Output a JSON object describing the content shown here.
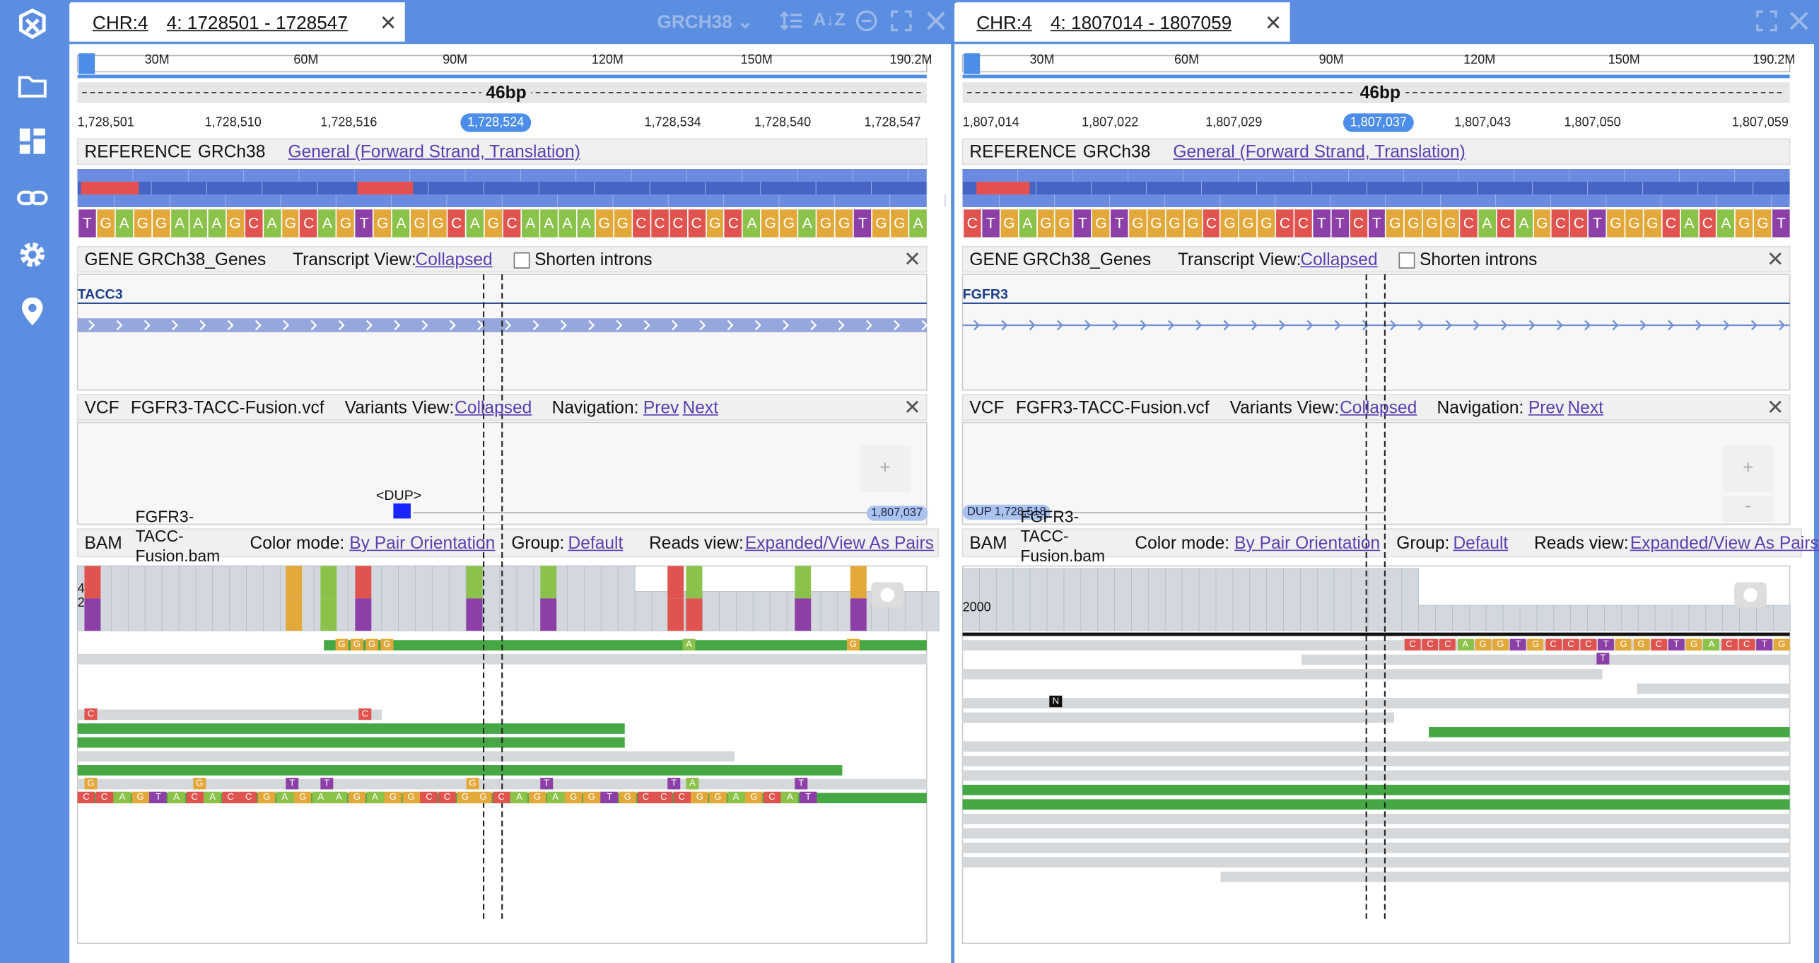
{
  "sidebar": {
    "icons": [
      "logo-icon",
      "folder-icon",
      "dashboard-icon",
      "link-icon",
      "gear-icon",
      "location-pin-icon"
    ]
  },
  "colors": {
    "accent": "#5b8ee0",
    "pill": "#4b8de8",
    "A": "#8bc34a",
    "C": "#e0534f",
    "G": "#e3a83a",
    "T": "#8c3fa6",
    "read": "#45a845",
    "dup": "#1a26ff"
  },
  "panels": [
    {
      "tab": {
        "chr": "CHR:4",
        "range": "4: 1728501 - 1728547",
        "close": "✕"
      },
      "genome": "GRCH38",
      "ruler": {
        "labels": [
          "30M",
          "60M",
          "90M",
          "120M",
          "150M",
          "190.2M"
        ],
        "span": "46bp",
        "positions": [
          "1,728,501",
          "1,728,510",
          "1,728,516",
          "1,728,534",
          "1,728,540",
          "1,728,547"
        ],
        "center": "1,728,524"
      },
      "reference": {
        "label": "REFERENCE",
        "genome": "GRCh38",
        "view": "General (Forward Strand, Translation)",
        "seq": "TGAGGAAAGCAGCAGTGAGGCAGCAAAAGGCCCCGCAGGAGGTGGA"
      },
      "gene": {
        "label": "GENE",
        "track": "GRCh38_Genes",
        "view_label": "Transcript View:",
        "view": "Collapsed",
        "shorten": "Shorten introns",
        "name": "TACC3"
      },
      "vcf": {
        "label": "VCF",
        "track": "FGFR3-TACC-Fusion.vcf",
        "view_label": "Variants View:",
        "view": "Collapsed",
        "nav_label": "Navigation:",
        "prev": "Prev",
        "next": "Next",
        "variant": "<DUP>",
        "edge_pill": "1,807,037",
        "plus": "+"
      },
      "bam": {
        "label": "BAM",
        "track": "FGFR3-TACC-Fusion.bam",
        "color_label": "Color mode:",
        "color": "By Pair Orientation",
        "group_label": "Group:",
        "group": "Default",
        "reads_label": "Reads view:",
        "reads": "Expanded/View As Pairs",
        "cov_label": "4\n2",
        "softclip": "CCAGTACACCGAGAAGAGGCCGGCAGAGGTGCCCGGAGCAT"
      }
    },
    {
      "tab": {
        "chr": "CHR:4",
        "range": "4: 1807014 - 1807059",
        "close": "✕"
      },
      "ruler": {
        "labels": [
          "30M",
          "60M",
          "90M",
          "120M",
          "150M",
          "190.2M"
        ],
        "span": "46bp",
        "positions": [
          "1,807,014",
          "1,807,022",
          "1,807,029",
          "1,807,043",
          "1,807,050",
          "1,807,059"
        ],
        "center": "1,807,037"
      },
      "reference": {
        "label": "REFERENCE",
        "genome": "GRCh38",
        "view": "General (Forward Strand, Translation)",
        "seq": "CTGAGGTGTGGGGCGGGCCTTCTGGGGCACAGCCTGGGCACAGGT"
      },
      "gene": {
        "label": "GENE",
        "track": "GRCh38_Genes",
        "view_label": "Transcript View:",
        "view": "Collapsed",
        "shorten": "Shorten introns",
        "name": "FGFR3"
      },
      "vcf": {
        "label": "VCF",
        "track": "FGFR3-TACC-Fusion.vcf",
        "view_label": "Variants View:",
        "view": "Collapsed",
        "nav_label": "Navigation:",
        "prev": "Prev",
        "next": "Next",
        "edge_pill": "DUP 1,728,518",
        "plus": "+",
        "minus": "-"
      },
      "bam": {
        "label": "BAM",
        "track": "FGFR3-TACC-Fusion.bam",
        "color_label": "Color mode:",
        "color": "By Pair Orientation",
        "group_label": "Group:",
        "group": "Default",
        "reads_label": "Reads view:",
        "reads": "Expanded/View As Pairs",
        "cov_label": "2000",
        "softclip": "CCCAGGTGCCCTGGCTGACCTG",
        "n_base": "N"
      }
    }
  ]
}
